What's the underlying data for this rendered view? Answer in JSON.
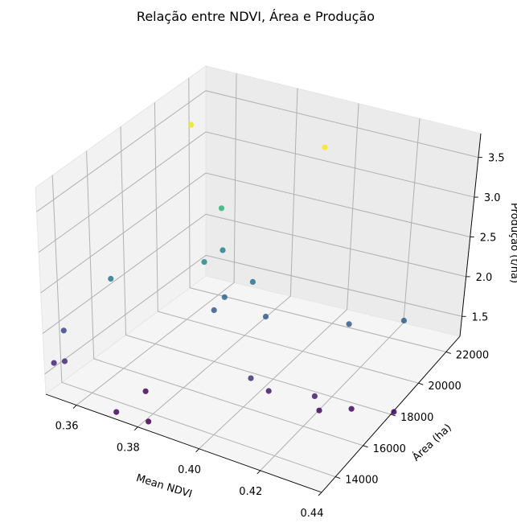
{
  "chart_data": {
    "type": "scatter",
    "title": "Relação entre NDVI, Área e Produção",
    "xlabel": "Mean NDVI",
    "ylabel": "Área (ha)",
    "zlabel": "Produção (t/ha)",
    "xlim": [
      0.35,
      0.44
    ],
    "ylim": [
      13000,
      23000
    ],
    "zlim": [
      1.25,
      3.8
    ],
    "x_ticks": [
      "0.36",
      "0.38",
      "0.40",
      "0.42",
      "0.44"
    ],
    "y_ticks": [
      "14000",
      "16000",
      "18000",
      "20000",
      "22000"
    ],
    "z_ticks": [
      "1.5",
      "2.0",
      "2.5",
      "3.0",
      "3.5"
    ],
    "colormap": "viridis",
    "grid": true,
    "points": [
      {
        "x": 0.356,
        "y": 21000,
        "z": 3.7
      },
      {
        "x": 0.4,
        "y": 21500,
        "z": 3.75
      },
      {
        "x": 0.372,
        "y": 20000,
        "z": 2.9
      },
      {
        "x": 0.353,
        "y": 16500,
        "z": 2.3
      },
      {
        "x": 0.374,
        "y": 18500,
        "z": 2.45
      },
      {
        "x": 0.374,
        "y": 19700,
        "z": 2.4
      },
      {
        "x": 0.348,
        "y": 14500,
        "z": 1.85
      },
      {
        "x": 0.388,
        "y": 19000,
        "z": 2.25
      },
      {
        "x": 0.382,
        "y": 18300,
        "z": 2.1
      },
      {
        "x": 0.381,
        "y": 17800,
        "z": 2.0
      },
      {
        "x": 0.396,
        "y": 18300,
        "z": 2.0
      },
      {
        "x": 0.42,
        "y": 19200,
        "z": 2.0
      },
      {
        "x": 0.435,
        "y": 20000,
        "z": 2.05
      },
      {
        "x": 0.402,
        "y": 16100,
        "z": 1.65
      },
      {
        "x": 0.42,
        "y": 16800,
        "z": 1.5
      },
      {
        "x": 0.352,
        "y": 13800,
        "z": 1.6
      },
      {
        "x": 0.349,
        "y": 13700,
        "z": 1.55
      },
      {
        "x": 0.406,
        "y": 16500,
        "z": 1.45
      },
      {
        "x": 0.374,
        "y": 14700,
        "z": 1.35
      },
      {
        "x": 0.422,
        "y": 16700,
        "z": 1.35
      },
      {
        "x": 0.43,
        "y": 17300,
        "z": 1.35
      },
      {
        "x": 0.442,
        "y": 17800,
        "z": 1.35
      },
      {
        "x": 0.373,
        "y": 13000,
        "z": 1.35
      },
      {
        "x": 0.382,
        "y": 13300,
        "z": 1.3
      }
    ]
  }
}
